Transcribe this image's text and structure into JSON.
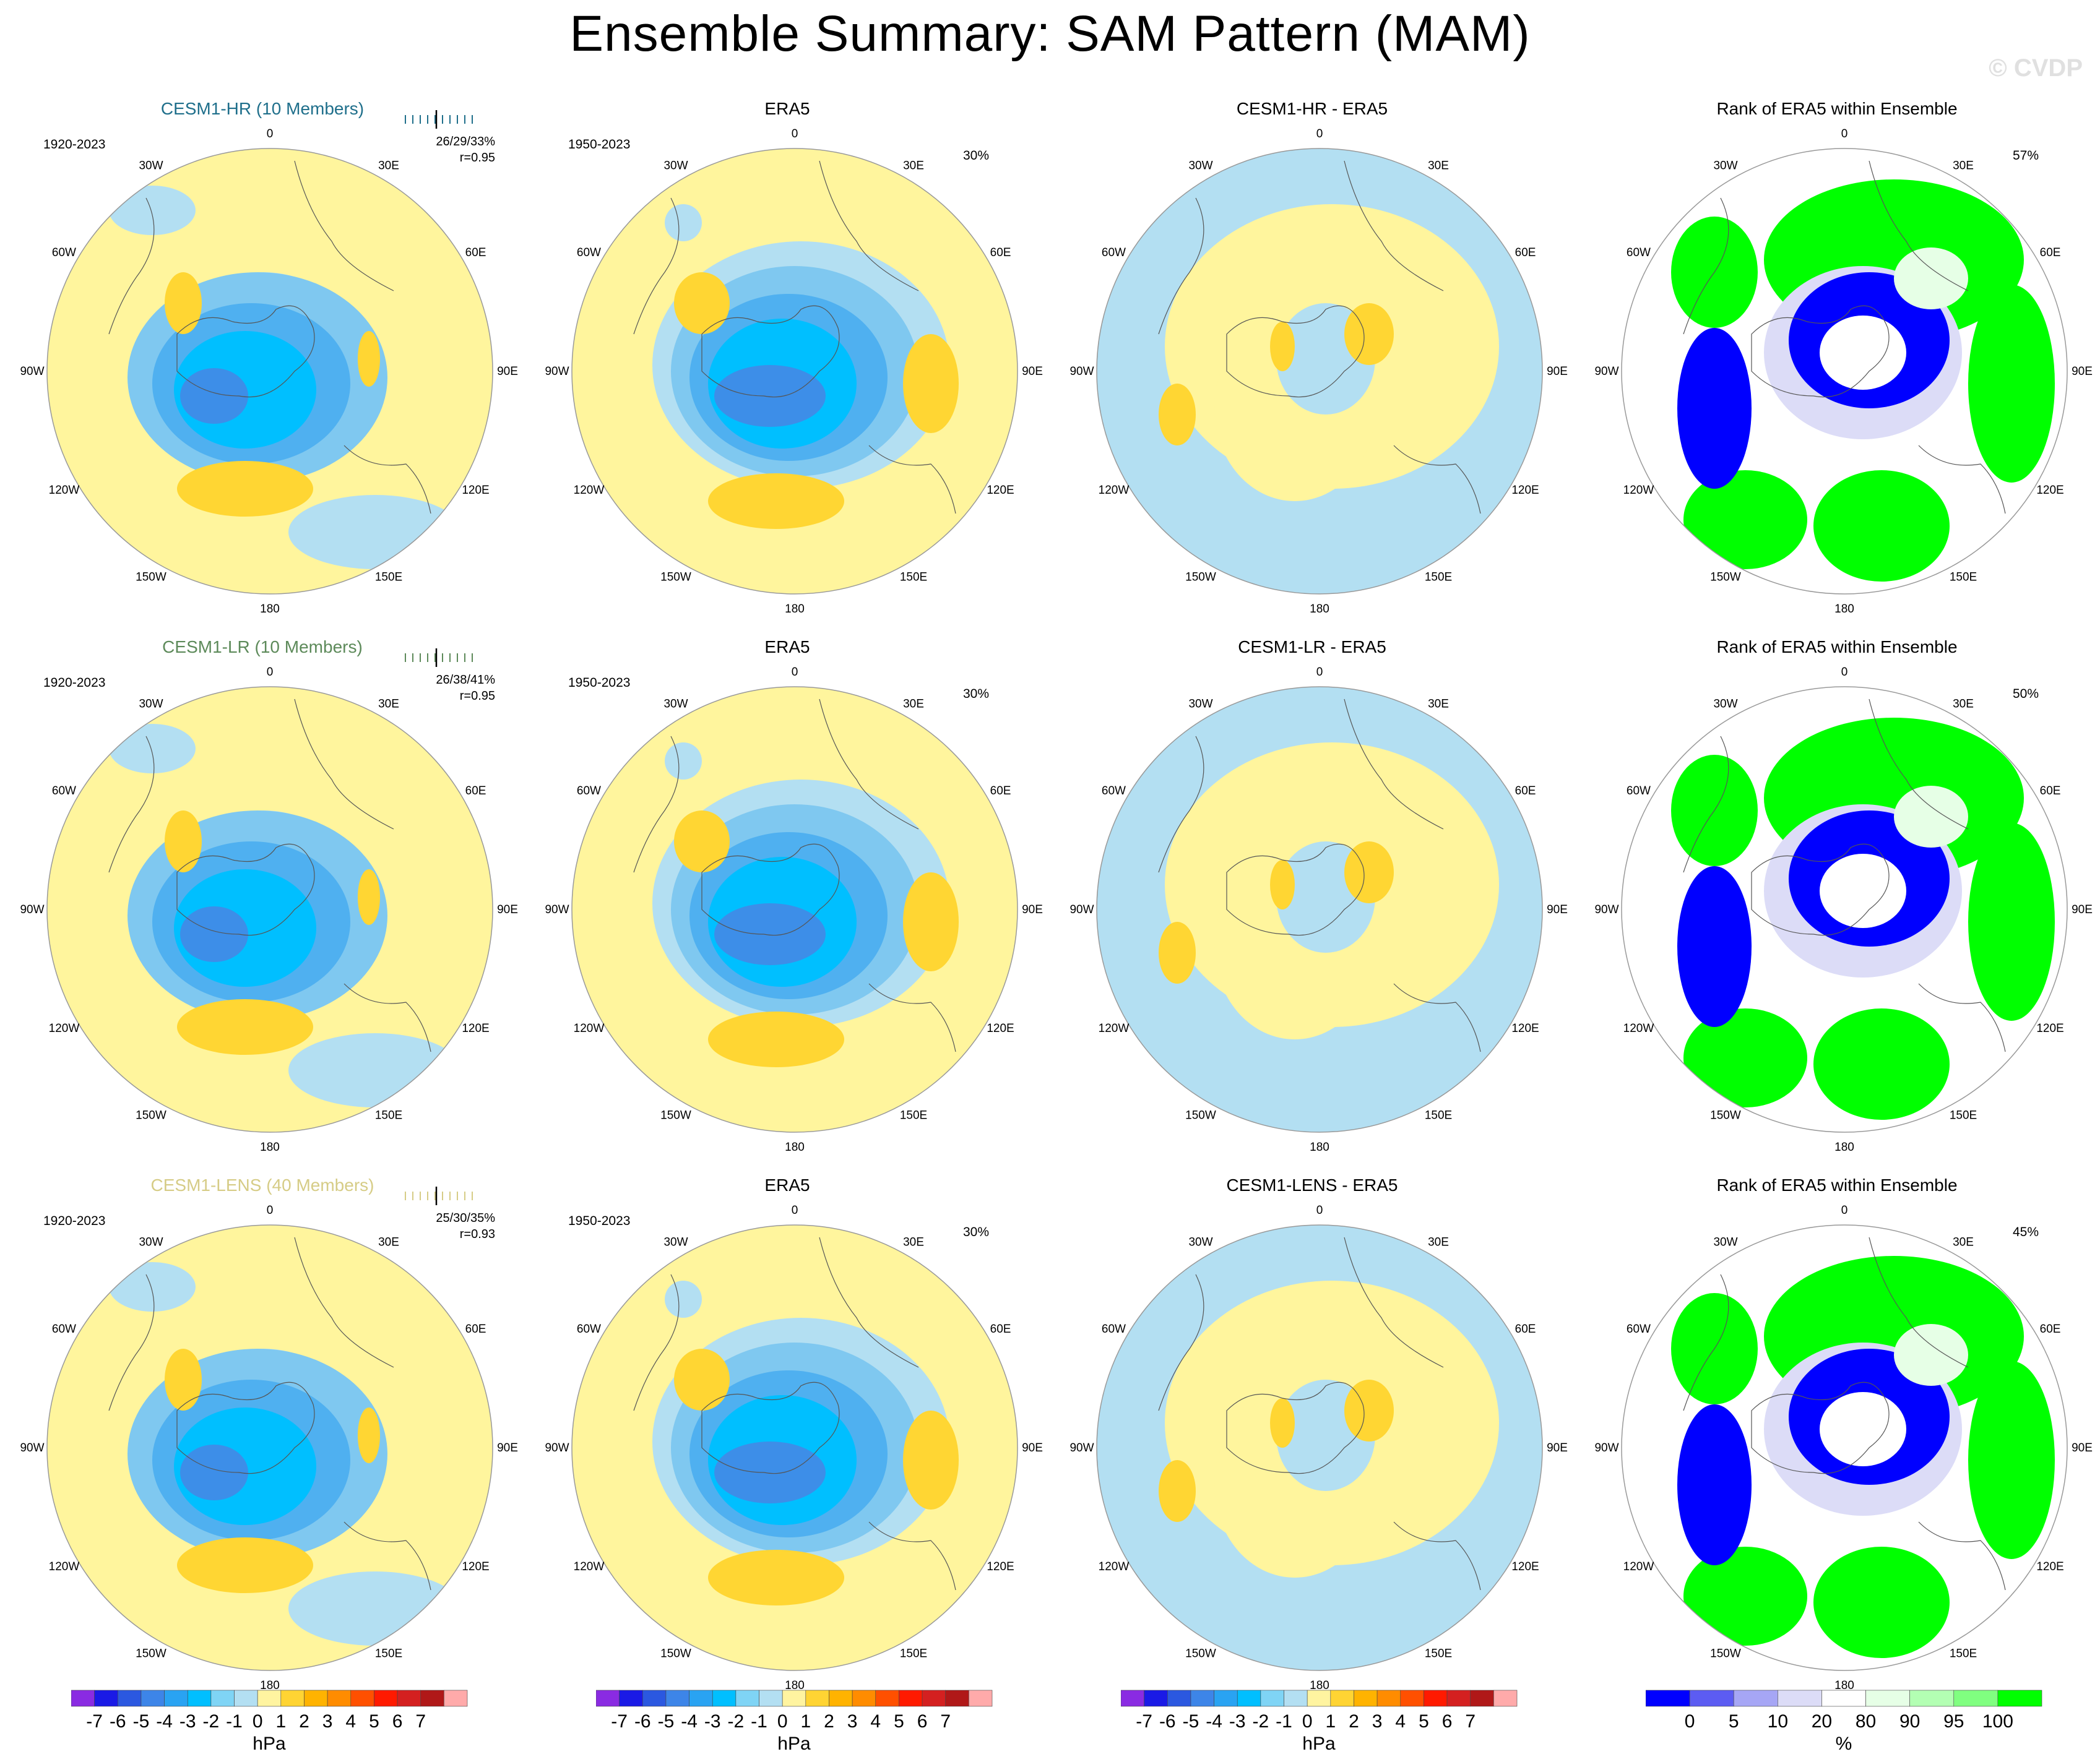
{
  "title": "Ensemble Summary: SAM Pattern (MAM)",
  "watermark": "© CVDP",
  "lon_labels": [
    "0",
    "30E",
    "60E",
    "90E",
    "120E",
    "150E",
    "180",
    "150W",
    "120W",
    "90W",
    "60W",
    "30W"
  ],
  "rows": [
    {
      "ensemble": {
        "title": "CESM1-HR (10 Members)",
        "title_color": "#1f6f8b",
        "period": "1920-2023",
        "stats_line1": "26/29/33%",
        "stats_line2": "r=0.95"
      },
      "era5": {
        "title": "ERA5",
        "period": "1950-2023",
        "pct": "30%"
      },
      "diff": {
        "title": "CESM1-HR - ERA5"
      },
      "rank": {
        "title": "Rank of ERA5 within Ensemble",
        "pct": "57%"
      }
    },
    {
      "ensemble": {
        "title": "CESM1-LR (10 Members)",
        "title_color": "#5d8a5a",
        "period": "1920-2023",
        "stats_line1": "26/38/41%",
        "stats_line2": "r=0.95"
      },
      "era5": {
        "title": "ERA5",
        "period": "1950-2023",
        "pct": "30%"
      },
      "diff": {
        "title": "CESM1-LR - ERA5"
      },
      "rank": {
        "title": "Rank of ERA5 within Ensemble",
        "pct": "50%"
      }
    },
    {
      "ensemble": {
        "title": "CESM1-LENS (40 Members)",
        "title_color": "#d6cc86",
        "period": "1920-2023",
        "stats_line1": "25/30/35%",
        "stats_line2": "r=0.93"
      },
      "era5": {
        "title": "ERA5",
        "period": "1950-2023",
        "pct": "30%"
      },
      "diff": {
        "title": "CESM1-LENS - ERA5"
      },
      "rank": {
        "title": "Rank of ERA5 within Ensemble",
        "pct": "45%"
      }
    }
  ],
  "colorbars": [
    {
      "unit": "hPa",
      "labels": [
        "-7",
        "-6",
        "-5",
        "-4",
        "-3",
        "-2",
        "-1",
        "0",
        "1",
        "2",
        "3",
        "4",
        "5",
        "6",
        "7"
      ],
      "colors": [
        "#8a2be2",
        "#1a1ae6",
        "#2b58e0",
        "#3d85e8",
        "#29a3f2",
        "#00bfff",
        "#7fd4f5",
        "#b3dff2",
        "#fff4a0",
        "#ffd433",
        "#ffb300",
        "#ff8c00",
        "#ff5000",
        "#ff1a00",
        "#d42020",
        "#b01818",
        "#ffaaaa"
      ]
    },
    {
      "unit": "hPa",
      "labels": [
        "-7",
        "-6",
        "-5",
        "-4",
        "-3",
        "-2",
        "-1",
        "0",
        "1",
        "2",
        "3",
        "4",
        "5",
        "6",
        "7"
      ],
      "colors": [
        "#8a2be2",
        "#1a1ae6",
        "#2b58e0",
        "#3d85e8",
        "#29a3f2",
        "#00bfff",
        "#7fd4f5",
        "#b3dff2",
        "#fff4a0",
        "#ffd433",
        "#ffb300",
        "#ff8c00",
        "#ff5000",
        "#ff1a00",
        "#d42020",
        "#b01818",
        "#ffaaaa"
      ]
    },
    {
      "unit": "hPa",
      "labels": [
        "-7",
        "-6",
        "-5",
        "-4",
        "-3",
        "-2",
        "-1",
        "0",
        "1",
        "2",
        "3",
        "4",
        "5",
        "6",
        "7"
      ],
      "colors": [
        "#8a2be2",
        "#1a1ae6",
        "#2b58e0",
        "#3d85e8",
        "#29a3f2",
        "#00bfff",
        "#7fd4f5",
        "#b3dff2",
        "#fff4a0",
        "#ffd433",
        "#ffb300",
        "#ff8c00",
        "#ff5000",
        "#ff1a00",
        "#d42020",
        "#b01818",
        "#ffaaaa"
      ]
    },
    {
      "unit": "%",
      "labels": [
        "0",
        "5",
        "10",
        "20",
        "80",
        "90",
        "95",
        "100"
      ],
      "colors": [
        "#0000ff",
        "#5c5cf2",
        "#a6a6f5",
        "#dcdcf7",
        "#ffffff",
        "#e6ffe6",
        "#b3ffb3",
        "#80ff80",
        "#00ff00"
      ]
    }
  ],
  "field_colors": {
    "yellow": "#fff59d",
    "lightblue": "#b3dff2",
    "blue1": "#7fc8f0",
    "blue2": "#4fb0f0",
    "blue3": "#00bfff",
    "blue4": "#3d8ee8",
    "orange": "#ffd633",
    "orange2": "#ffa500",
    "rank_blue": "#0000ff",
    "rank_green": "#00ff00",
    "rank_lightgreen": "#e6ffe6",
    "rank_lav": "#dcdcf7"
  }
}
